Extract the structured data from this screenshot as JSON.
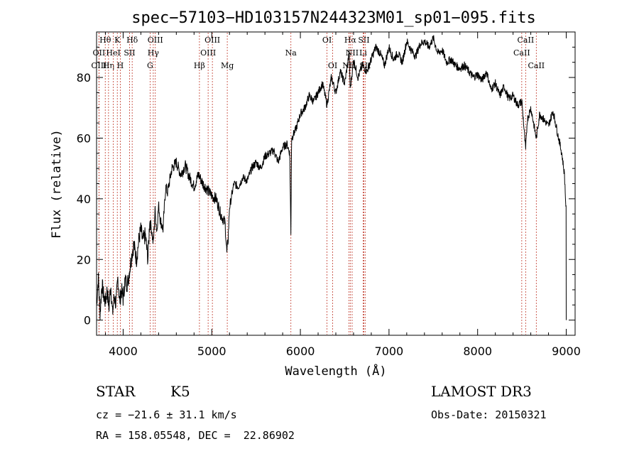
{
  "chart_data": {
    "type": "line",
    "title": "spec−57103−HD103157N244323M01_sp01−095.fits",
    "xlabel": "Wavelength (Å)",
    "ylabel": "Flux (relative)",
    "xlim": [
      3700,
      9100
    ],
    "ylim": [
      -5,
      95
    ],
    "xticks": [
      4000,
      5000,
      6000,
      7000,
      8000,
      9000
    ],
    "yticks": [
      0,
      20,
      40,
      60,
      80
    ],
    "series": [
      {
        "name": "flux",
        "x": [
          3700,
          3720,
          3740,
          3760,
          3780,
          3800,
          3820,
          3840,
          3860,
          3880,
          3900,
          3920,
          3940,
          3960,
          3980,
          4000,
          4020,
          4050,
          4080,
          4100,
          4120,
          4150,
          4180,
          4200,
          4220,
          4250,
          4280,
          4300,
          4320,
          4340,
          4360,
          4380,
          4400,
          4420,
          4450,
          4480,
          4500,
          4550,
          4600,
          4650,
          4700,
          4750,
          4800,
          4850,
          4900,
          4950,
          5000,
          5050,
          5100,
          5150,
          5170,
          5185,
          5200,
          5250,
          5300,
          5350,
          5400,
          5450,
          5500,
          5550,
          5600,
          5650,
          5700,
          5750,
          5800,
          5850,
          5880,
          5893,
          5900,
          5950,
          6000,
          6050,
          6100,
          6150,
          6200,
          6250,
          6300,
          6350,
          6400,
          6450,
          6500,
          6550,
          6563,
          6600,
          6650,
          6700,
          6750,
          6800,
          6850,
          6900,
          6950,
          7000,
          7050,
          7100,
          7150,
          7200,
          7250,
          7300,
          7350,
          7400,
          7450,
          7500,
          7550,
          7600,
          7650,
          7700,
          7750,
          7800,
          7850,
          7900,
          7950,
          8000,
          8050,
          8100,
          8150,
          8200,
          8250,
          8300,
          8350,
          8400,
          8450,
          8500,
          8542,
          8560,
          8600,
          8662,
          8700,
          8750,
          8800,
          8850,
          8900,
          8950,
          8980,
          9000
        ],
        "values": [
          5,
          14,
          2,
          12,
          8,
          6,
          10,
          4,
          12,
          2,
          8,
          5,
          14,
          6,
          10,
          7,
          13,
          12,
          18,
          22,
          25,
          20,
          27,
          30,
          26,
          28,
          20,
          33,
          30,
          25,
          36,
          29,
          38,
          33,
          30,
          44,
          42,
          50,
          52,
          48,
          51,
          47,
          44,
          48,
          45,
          43,
          41,
          40,
          35,
          32,
          22,
          27,
          37,
          45,
          44,
          47,
          46,
          50,
          52,
          50,
          54,
          55,
          56,
          52,
          57,
          58,
          55,
          28,
          60,
          63,
          68,
          70,
          74,
          72,
          75,
          78,
          71,
          80,
          75,
          82,
          78,
          88,
          76,
          86,
          80,
          84,
          82,
          86,
          90,
          88,
          84,
          90,
          86,
          88,
          85,
          92,
          89,
          87,
          91,
          92,
          90,
          93,
          88,
          89,
          85,
          86,
          84,
          83,
          84,
          82,
          80,
          81,
          79,
          82,
          76,
          78,
          74,
          77,
          73,
          74,
          71,
          72,
          56,
          66,
          70,
          60,
          68,
          66,
          64,
          69,
          62,
          55,
          48,
          35
        ]
      }
    ],
    "spectral_lines": [
      {
        "label": "Hθ",
        "x": 3798,
        "row": 1
      },
      {
        "label": "OII",
        "x": 3727,
        "row": 2
      },
      {
        "label": "OIII",
        "x": 3727,
        "row": 3
      },
      {
        "label": "Hη",
        "x": 3835,
        "row": 3
      },
      {
        "label": "HeI",
        "x": 3889,
        "row": 2
      },
      {
        "label": "K",
        "x": 3934,
        "row": 1
      },
      {
        "label": "H",
        "x": 3968,
        "row": 3
      },
      {
        "label": "SII",
        "x": 4072,
        "row": 2
      },
      {
        "label": "Hδ",
        "x": 4102,
        "row": 1
      },
      {
        "label": "OIII",
        "x": 4363,
        "row": 1
      },
      {
        "label": "Hγ",
        "x": 4340,
        "row": 2
      },
      {
        "label": "G",
        "x": 4304,
        "row": 3
      },
      {
        "label": "Hβ",
        "x": 4861,
        "row": 3
      },
      {
        "label": "OIII",
        "x": 5007,
        "row": 1
      },
      {
        "label": "OIII",
        "x": 4959,
        "row": 2
      },
      {
        "label": "Mg",
        "x": 5175,
        "row": 3
      },
      {
        "label": "Na",
        "x": 5893,
        "row": 2
      },
      {
        "label": "OI",
        "x": 6300,
        "row": 1
      },
      {
        "label": "OI",
        "x": 6364,
        "row": 3
      },
      {
        "label": "Hα",
        "x": 6563,
        "row": 1
      },
      {
        "label": "NII",
        "x": 6584,
        "row": 2
      },
      {
        "label": "NII",
        "x": 6548,
        "row": 3
      },
      {
        "label": "SII",
        "x": 6716,
        "row": 1
      },
      {
        "label": "Li",
        "x": 6708,
        "row": 2
      },
      {
        "label": "SII",
        "x": 6731,
        "row": 3
      },
      {
        "label": "CaII",
        "x": 8542,
        "row": 1
      },
      {
        "label": "CaII",
        "x": 8498,
        "row": 2
      },
      {
        "label": "CaII",
        "x": 8662,
        "row": 3
      }
    ]
  },
  "info": {
    "object_class": "STAR",
    "subclass": "K5",
    "survey": "LAMOST DR3",
    "cz": "cz = −21.6 ± 31.1 km/s",
    "obs_date": "Obs-Date: 20150321",
    "coords": "RA = 158.05548, DEC =  22.86902"
  }
}
